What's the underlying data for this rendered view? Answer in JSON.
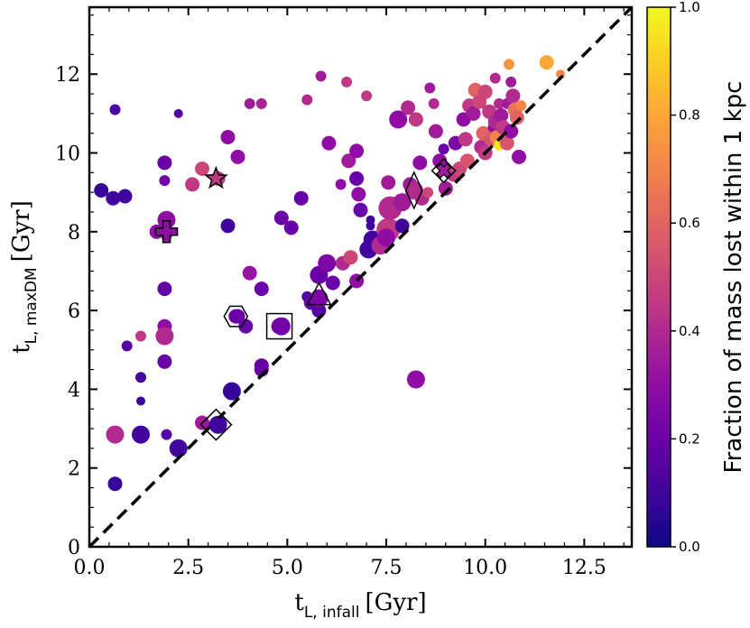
{
  "chart_data": {
    "type": "scatter",
    "title": "",
    "xlabel": {
      "main": "t",
      "sub": "L, infall",
      "unit": "[Gyr]"
    },
    "ylabel": {
      "main": "t",
      "sub": "L, maxDM",
      "unit": "[Gyr]"
    },
    "xlim": [
      0,
      13.7
    ],
    "ylim": [
      0,
      13.7
    ],
    "x_ticks": [
      0.0,
      2.5,
      5.0,
      7.5,
      10.0,
      12.5
    ],
    "x_tick_labels": [
      "0.0",
      "2.5",
      "5.0",
      "7.5",
      "10.0",
      "12.5"
    ],
    "y_ticks": [
      0,
      2,
      4,
      6,
      8,
      10,
      12
    ],
    "y_tick_labels": [
      "0",
      "2",
      "4",
      "6",
      "8",
      "10",
      "12"
    ],
    "grid": false,
    "reference_line": {
      "style": "dashed",
      "color": "#000000",
      "from": [
        0,
        0
      ],
      "to": [
        13.7,
        13.7
      ],
      "meaning": "y = x"
    },
    "colorbar": {
      "label": "Fraction of mass lost within 1 kpc",
      "colormap": "plasma",
      "range": [
        0.0,
        1.0
      ],
      "ticks": [
        0.0,
        0.2,
        0.4,
        0.6,
        0.8,
        1.0
      ],
      "tick_labels": [
        "0.0",
        "0.2",
        "0.4",
        "0.6",
        "0.8",
        "1.0"
      ]
    },
    "points": [
      {
        "x": 0.3,
        "y": 9.05,
        "c": 0.08,
        "s": "m"
      },
      {
        "x": 0.6,
        "y": 8.85,
        "c": 0.1,
        "s": "m"
      },
      {
        "x": 0.9,
        "y": 8.9,
        "c": 0.1,
        "s": "m"
      },
      {
        "x": 0.65,
        "y": 11.1,
        "c": 0.12,
        "s": "s"
      },
      {
        "x": 0.65,
        "y": 2.85,
        "c": 0.4,
        "s": "l"
      },
      {
        "x": 0.65,
        "y": 1.6,
        "c": 0.08,
        "s": "m"
      },
      {
        "x": 0.95,
        "y": 5.1,
        "c": 0.15,
        "s": "s"
      },
      {
        "x": 1.3,
        "y": 5.35,
        "c": 0.45,
        "s": "s"
      },
      {
        "x": 1.3,
        "y": 4.3,
        "c": 0.12,
        "s": "s"
      },
      {
        "x": 1.3,
        "y": 3.7,
        "c": 0.08,
        "s": "xs"
      },
      {
        "x": 1.3,
        "y": 2.85,
        "c": 0.1,
        "s": "l"
      },
      {
        "x": 1.7,
        "y": 8.0,
        "c": 0.3,
        "s": "m"
      },
      {
        "x": 1.9,
        "y": 9.75,
        "c": 0.2,
        "s": "m"
      },
      {
        "x": 1.9,
        "y": 9.3,
        "c": 0.22,
        "s": "s"
      },
      {
        "x": 1.95,
        "y": 8.3,
        "c": 0.3,
        "s": "l"
      },
      {
        "x": 1.95,
        "y": 7.9,
        "c": 0.25,
        "s": "s"
      },
      {
        "x": 1.9,
        "y": 6.55,
        "c": 0.18,
        "s": "m"
      },
      {
        "x": 1.9,
        "y": 5.6,
        "c": 0.3,
        "s": "m"
      },
      {
        "x": 1.9,
        "y": 5.35,
        "c": 0.4,
        "s": "l"
      },
      {
        "x": 1.9,
        "y": 4.7,
        "c": 0.2,
        "s": "m"
      },
      {
        "x": 1.95,
        "y": 2.85,
        "c": 0.15,
        "s": "s"
      },
      {
        "x": 2.25,
        "y": 2.5,
        "c": 0.1,
        "s": "l"
      },
      {
        "x": 2.25,
        "y": 11.0,
        "c": 0.15,
        "s": "xs"
      },
      {
        "x": 2.6,
        "y": 9.2,
        "c": 0.45,
        "s": "m"
      },
      {
        "x": 2.85,
        "y": 9.6,
        "c": 0.5,
        "s": "m"
      },
      {
        "x": 2.85,
        "y": 3.15,
        "c": 0.35,
        "s": "m"
      },
      {
        "x": 3.25,
        "y": 3.1,
        "c": 0.1,
        "s": "l"
      },
      {
        "x": 3.25,
        "y": 9.35,
        "c": 0.45,
        "s": "m"
      },
      {
        "x": 3.5,
        "y": 10.4,
        "c": 0.3,
        "s": "m"
      },
      {
        "x": 3.5,
        "y": 8.15,
        "c": 0.1,
        "s": "m"
      },
      {
        "x": 3.6,
        "y": 3.95,
        "c": 0.08,
        "s": "l"
      },
      {
        "x": 3.75,
        "y": 9.9,
        "c": 0.3,
        "s": "m"
      },
      {
        "x": 3.75,
        "y": 5.85,
        "c": 0.2,
        "s": "m"
      },
      {
        "x": 3.95,
        "y": 5.6,
        "c": 0.2,
        "s": "m"
      },
      {
        "x": 4.05,
        "y": 11.25,
        "c": 0.35,
        "s": "s"
      },
      {
        "x": 4.05,
        "y": 6.95,
        "c": 0.32,
        "s": "m"
      },
      {
        "x": 4.35,
        "y": 11.25,
        "c": 0.38,
        "s": "s"
      },
      {
        "x": 4.35,
        "y": 6.55,
        "c": 0.2,
        "s": "m"
      },
      {
        "x": 4.35,
        "y": 4.6,
        "c": 0.18,
        "s": "m"
      },
      {
        "x": 4.35,
        "y": 4.5,
        "c": 0.2,
        "s": "m"
      },
      {
        "x": 4.85,
        "y": 5.6,
        "c": 0.22,
        "s": "l"
      },
      {
        "x": 4.85,
        "y": 8.35,
        "c": 0.2,
        "s": "m"
      },
      {
        "x": 5.1,
        "y": 8.1,
        "c": 0.2,
        "s": "m"
      },
      {
        "x": 5.35,
        "y": 8.85,
        "c": 0.2,
        "s": "m"
      },
      {
        "x": 5.5,
        "y": 6.35,
        "c": 0.15,
        "s": "s"
      },
      {
        "x": 5.5,
        "y": 11.35,
        "c": 0.4,
        "s": "s"
      },
      {
        "x": 5.6,
        "y": 6.2,
        "c": 0.18,
        "s": "m"
      },
      {
        "x": 5.8,
        "y": 6.9,
        "c": 0.2,
        "s": "l"
      },
      {
        "x": 5.8,
        "y": 6.0,
        "c": 0.15,
        "s": "m"
      },
      {
        "x": 5.85,
        "y": 11.95,
        "c": 0.35,
        "s": "s"
      },
      {
        "x": 6.0,
        "y": 7.2,
        "c": 0.25,
        "s": "l"
      },
      {
        "x": 6.05,
        "y": 10.25,
        "c": 0.3,
        "s": "m"
      },
      {
        "x": 6.15,
        "y": 6.7,
        "c": 0.2,
        "s": "m"
      },
      {
        "x": 6.35,
        "y": 9.2,
        "c": 0.3,
        "s": "s"
      },
      {
        "x": 6.4,
        "y": 7.2,
        "c": 0.4,
        "s": "m"
      },
      {
        "x": 6.5,
        "y": 11.8,
        "c": 0.45,
        "s": "s"
      },
      {
        "x": 6.55,
        "y": 9.8,
        "c": 0.35,
        "s": "m"
      },
      {
        "x": 6.6,
        "y": 7.35,
        "c": 0.5,
        "s": "m"
      },
      {
        "x": 6.75,
        "y": 10.05,
        "c": 0.3,
        "s": "m"
      },
      {
        "x": 6.75,
        "y": 6.75,
        "c": 0.3,
        "s": "m"
      },
      {
        "x": 6.75,
        "y": 9.35,
        "c": 0.2,
        "s": "m"
      },
      {
        "x": 6.8,
        "y": 8.95,
        "c": 0.3,
        "s": "m"
      },
      {
        "x": 6.85,
        "y": 8.55,
        "c": 0.2,
        "s": "m"
      },
      {
        "x": 7.0,
        "y": 11.45,
        "c": 0.45,
        "s": "s"
      },
      {
        "x": 7.05,
        "y": 7.55,
        "c": 0.1,
        "s": "l"
      },
      {
        "x": 7.1,
        "y": 8.3,
        "c": 0.1,
        "s": "xs"
      },
      {
        "x": 7.1,
        "y": 8.15,
        "c": 0.1,
        "s": "xs"
      },
      {
        "x": 7.15,
        "y": 7.8,
        "c": 0.1,
        "s": "l"
      },
      {
        "x": 7.35,
        "y": 7.65,
        "c": 0.4,
        "s": "l"
      },
      {
        "x": 7.55,
        "y": 8.05,
        "c": 0.45,
        "s": "xl"
      },
      {
        "x": 7.6,
        "y": 8.6,
        "c": 0.4,
        "s": "xl"
      },
      {
        "x": 7.5,
        "y": 7.85,
        "c": 0.3,
        "s": "l"
      },
      {
        "x": 7.55,
        "y": 9.25,
        "c": 0.35,
        "s": "m"
      },
      {
        "x": 7.8,
        "y": 10.85,
        "c": 0.3,
        "s": "l"
      },
      {
        "x": 7.9,
        "y": 8.75,
        "c": 0.35,
        "s": "l"
      },
      {
        "x": 7.9,
        "y": 8.15,
        "c": 0.1,
        "s": "m"
      },
      {
        "x": 8.05,
        "y": 11.15,
        "c": 0.4,
        "s": "m"
      },
      {
        "x": 8.1,
        "y": 9.2,
        "c": 0.35,
        "s": "m"
      },
      {
        "x": 8.25,
        "y": 10.85,
        "c": 0.45,
        "s": "m"
      },
      {
        "x": 8.25,
        "y": 4.25,
        "c": 0.3,
        "s": "l"
      },
      {
        "x": 8.35,
        "y": 9.75,
        "c": 0.3,
        "s": "m"
      },
      {
        "x": 8.4,
        "y": 8.85,
        "c": 0.4,
        "s": "m"
      },
      {
        "x": 8.55,
        "y": 9.0,
        "c": 0.5,
        "s": "s"
      },
      {
        "x": 8.6,
        "y": 11.65,
        "c": 0.35,
        "s": "s"
      },
      {
        "x": 8.7,
        "y": 11.25,
        "c": 0.4,
        "s": "s"
      },
      {
        "x": 8.75,
        "y": 10.55,
        "c": 0.35,
        "s": "m"
      },
      {
        "x": 8.85,
        "y": 9.8,
        "c": 0.3,
        "s": "m"
      },
      {
        "x": 8.95,
        "y": 10.1,
        "c": 0.2,
        "s": "s"
      },
      {
        "x": 9.0,
        "y": 9.1,
        "c": 0.35,
        "s": "m"
      },
      {
        "x": 9.2,
        "y": 9.45,
        "c": 0.45,
        "s": "m"
      },
      {
        "x": 9.25,
        "y": 10.25,
        "c": 0.25,
        "s": "m"
      },
      {
        "x": 9.35,
        "y": 9.6,
        "c": 0.5,
        "s": "m"
      },
      {
        "x": 9.45,
        "y": 10.85,
        "c": 0.3,
        "s": "m"
      },
      {
        "x": 9.5,
        "y": 10.35,
        "c": 0.45,
        "s": "m"
      },
      {
        "x": 9.55,
        "y": 9.8,
        "c": 0.55,
        "s": "m"
      },
      {
        "x": 9.6,
        "y": 11.2,
        "c": 0.45,
        "s": "m"
      },
      {
        "x": 9.7,
        "y": 11.0,
        "c": 0.35,
        "s": "m"
      },
      {
        "x": 9.75,
        "y": 11.6,
        "c": 0.6,
        "s": "m"
      },
      {
        "x": 9.85,
        "y": 11.3,
        "c": 0.5,
        "s": "m"
      },
      {
        "x": 9.9,
        "y": 10.15,
        "c": 0.4,
        "s": "m"
      },
      {
        "x": 9.95,
        "y": 10.5,
        "c": 0.6,
        "s": "m"
      },
      {
        "x": 10.0,
        "y": 11.55,
        "c": 0.5,
        "s": "m"
      },
      {
        "x": 10.0,
        "y": 10.0,
        "c": 0.45,
        "s": "m"
      },
      {
        "x": 10.1,
        "y": 11.05,
        "c": 0.45,
        "s": "m"
      },
      {
        "x": 10.15,
        "y": 10.35,
        "c": 0.55,
        "s": "m"
      },
      {
        "x": 10.2,
        "y": 10.65,
        "c": 0.3,
        "s": "s"
      },
      {
        "x": 10.25,
        "y": 10.8,
        "c": 0.4,
        "s": "m"
      },
      {
        "x": 10.25,
        "y": 11.9,
        "c": 0.4,
        "s": "s"
      },
      {
        "x": 10.3,
        "y": 10.4,
        "c": 0.7,
        "s": "m"
      },
      {
        "x": 10.35,
        "y": 10.2,
        "c": 0.95,
        "s": "s"
      },
      {
        "x": 10.35,
        "y": 11.25,
        "c": 0.4,
        "s": "s"
      },
      {
        "x": 10.4,
        "y": 10.95,
        "c": 0.35,
        "s": "m"
      },
      {
        "x": 10.45,
        "y": 10.65,
        "c": 0.45,
        "s": "m"
      },
      {
        "x": 10.55,
        "y": 11.25,
        "c": 0.35,
        "s": "s"
      },
      {
        "x": 10.55,
        "y": 10.25,
        "c": 0.55,
        "s": "m"
      },
      {
        "x": 10.6,
        "y": 12.25,
        "c": 0.75,
        "s": "s"
      },
      {
        "x": 10.65,
        "y": 11.8,
        "c": 0.35,
        "s": "s"
      },
      {
        "x": 10.65,
        "y": 10.55,
        "c": 0.3,
        "s": "m"
      },
      {
        "x": 10.7,
        "y": 11.45,
        "c": 0.4,
        "s": "m"
      },
      {
        "x": 10.75,
        "y": 11.1,
        "c": 0.65,
        "s": "m"
      },
      {
        "x": 10.8,
        "y": 10.9,
        "c": 0.6,
        "s": "m"
      },
      {
        "x": 10.85,
        "y": 9.9,
        "c": 0.3,
        "s": "m"
      },
      {
        "x": 10.9,
        "y": 11.2,
        "c": 0.7,
        "s": "s"
      },
      {
        "x": 11.55,
        "y": 12.3,
        "c": 0.8,
        "s": "m"
      },
      {
        "x": 11.9,
        "y": 12.0,
        "c": 0.7,
        "s": "xs"
      }
    ],
    "highlighted": [
      {
        "shape": "star",
        "x": 3.2,
        "y": 9.35,
        "c": 0.45
      },
      {
        "shape": "cross",
        "x": 1.95,
        "y": 8.0,
        "c": 0.3
      },
      {
        "shape": "hexagon",
        "x": 3.7,
        "y": 5.85,
        "c": 0.2
      },
      {
        "shape": "square",
        "x": 4.8,
        "y": 5.6,
        "c": 0.22
      },
      {
        "shape": "diamond",
        "x": 3.2,
        "y": 3.1,
        "c": 0.1
      },
      {
        "shape": "triangle",
        "x": 5.8,
        "y": 6.4,
        "c": 0.25
      },
      {
        "shape": "thin-diamond",
        "x": 8.2,
        "y": 9.05,
        "c": 0.4
      },
      {
        "shape": "x-diamond",
        "x": 8.95,
        "y": 9.55,
        "c": 0.35
      }
    ]
  }
}
